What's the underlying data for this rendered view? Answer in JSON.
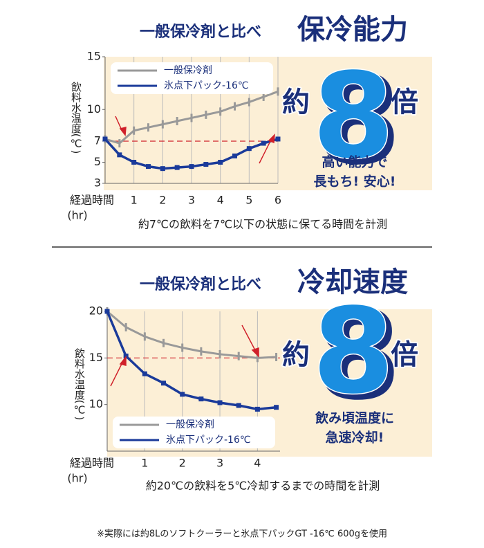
{
  "chart_data": [
    {
      "type": "line",
      "headline": "一般保冷剤と比べ",
      "title": "保冷能力",
      "ratio_prefix": "約",
      "ratio": "8",
      "ratio_suffix": "倍",
      "callout": [
        "高い能力で",
        "長もち! 安心!"
      ],
      "y_label": "飲料水温度(℃)",
      "x_label": "経過時間",
      "x_unit": "(hr)",
      "caption": "約7℃の飲料を7℃以下の状態に保てる時間を計測",
      "x": [
        0,
        0.5,
        1,
        1.5,
        2,
        2.5,
        3,
        3.5,
        4,
        4.5,
        5,
        5.5,
        6
      ],
      "series": [
        {
          "name": "一般保冷剤",
          "color": "#999999",
          "values": [
            7.2,
            6.8,
            8.0,
            8.3,
            8.6,
            8.9,
            9.2,
            9.5,
            9.8,
            10.3,
            10.7,
            11.2,
            11.7
          ]
        },
        {
          "name": "氷点下パック-16℃",
          "color": "#1a3a9a",
          "values": [
            7.2,
            5.7,
            5.0,
            4.6,
            4.4,
            4.5,
            4.6,
            4.8,
            5.0,
            5.6,
            6.3,
            6.8,
            7.2
          ]
        }
      ],
      "reference_line": 7,
      "xlim": [
        0,
        6
      ],
      "xticks": [
        1,
        2,
        3,
        4,
        5,
        6
      ],
      "ylim": [
        3,
        15
      ],
      "yticks": [
        3,
        5,
        7,
        10,
        15
      ],
      "legend": "top-left",
      "grid": true
    },
    {
      "type": "line",
      "headline": "一般保冷剤と比べ",
      "title": "冷却速度",
      "ratio_prefix": "約",
      "ratio": "8",
      "ratio_suffix": "倍",
      "callout": [
        "飲み頃温度に",
        "急速冷却!"
      ],
      "y_label": "飲料水温度(℃)",
      "x_label": "経過時間",
      "x_unit": "(hr)",
      "caption": "約20℃の飲料を5℃冷却するまでの時間を計測",
      "x": [
        0,
        0.5,
        1,
        1.5,
        2,
        2.5,
        3,
        3.5,
        4,
        4.5
      ],
      "series": [
        {
          "name": "一般保冷剤",
          "color": "#999999",
          "values": [
            20,
            18.3,
            17.3,
            16.6,
            16.1,
            15.7,
            15.4,
            15.2,
            15.0,
            15.1
          ]
        },
        {
          "name": "氷点下パック-16℃",
          "color": "#1a3a9a",
          "values": [
            20,
            15.2,
            13.3,
            12.3,
            11.1,
            10.6,
            10.2,
            9.9,
            9.5,
            9.7
          ]
        }
      ],
      "reference_line": 15,
      "xlim": [
        0,
        4.6
      ],
      "xticks": [
        1,
        2,
        3,
        4
      ],
      "ylim": [
        5,
        20
      ],
      "yticks": [
        10,
        15,
        20
      ],
      "legend": "bottom-left",
      "grid": true
    }
  ],
  "footnote": "※実際には約8Lのソフトクーラーと氷点下パックGT -16℃ 600gを使用"
}
